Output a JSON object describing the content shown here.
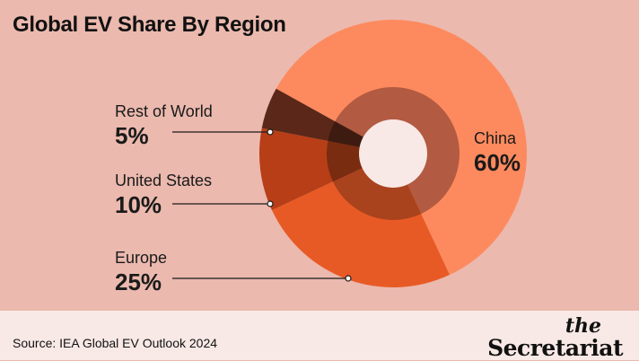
{
  "header": {
    "title": "Global EV Share By Region"
  },
  "chart_data": {
    "type": "pie",
    "title": "Global EV Share By Region",
    "slices": [
      {
        "label": "China",
        "value": 60,
        "value_label": "60%",
        "color": "#fd8a5e",
        "inner_color": "#b35a42"
      },
      {
        "label": "Europe",
        "value": 25,
        "value_label": "25%",
        "color": "#e85a25",
        "inner_color": "#a8431e"
      },
      {
        "label": "United States",
        "value": 10,
        "value_label": "10%",
        "color": "#b73e17",
        "inner_color": "#7a2c10"
      },
      {
        "label": "Rest of World",
        "value": 5,
        "value_label": "5%",
        "color": "#5a2718",
        "inner_color": "#3d1b10"
      }
    ],
    "donut": true,
    "legend": "callout-labels"
  },
  "footer": {
    "source": "Source: IEA Global EV Outlook 2024",
    "brand_the": "the",
    "brand_name": "Secretariat"
  }
}
